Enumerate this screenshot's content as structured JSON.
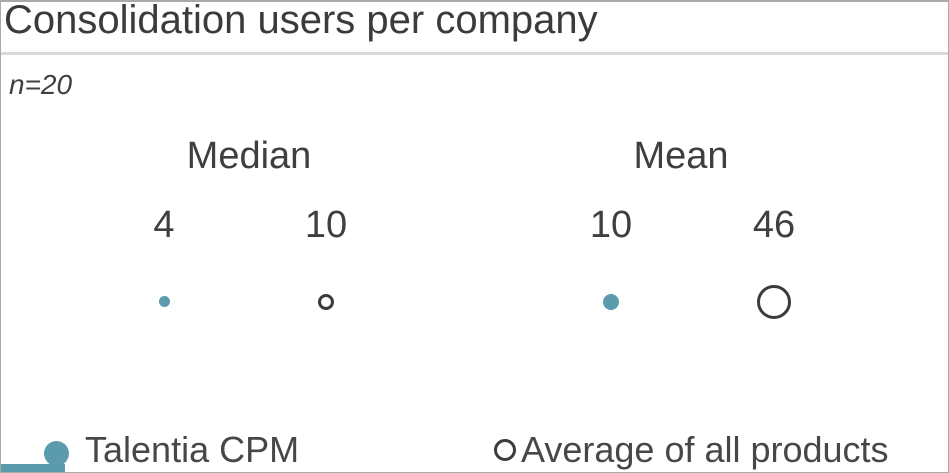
{
  "header": {
    "title": "Consolidation users per company",
    "subtitle": "n=20"
  },
  "display": {
    "group_labels": [
      "Median",
      "Mean"
    ],
    "value_labels": [
      "4",
      "10",
      "10",
      "46"
    ]
  },
  "legend": {
    "items": [
      {
        "label": "Talentia CPM",
        "marker": "filled-circle-icon"
      },
      {
        "label": "Average of all products",
        "marker": "open-circle-icon"
      }
    ]
  },
  "colors": {
    "accent_teal": "#5b9bad",
    "text_dark": "#3f3f3f",
    "divider_gray": "#d9d9d9",
    "outline_dark": "#3b3b3b"
  },
  "chart_data": {
    "type": "scatter",
    "title": "Consolidation users per company",
    "subtitle": "n=20",
    "categories": [
      "Median",
      "Mean"
    ],
    "series": [
      {
        "name": "Talentia CPM",
        "marker": "filled-circle",
        "color": "#5b9bad",
        "values": [
          4,
          10
        ]
      },
      {
        "name": "Average of all products",
        "marker": "open-circle",
        "color": "#3b3b3b",
        "values": [
          10,
          46
        ]
      }
    ],
    "value_labels_shown": true,
    "marker_size_encodes_value": true,
    "legend_position": "bottom",
    "axes": "none",
    "grid": false
  }
}
